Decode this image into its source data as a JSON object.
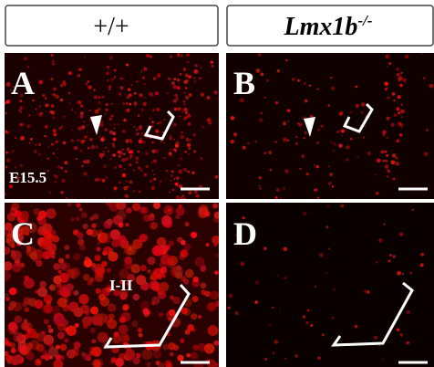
{
  "header": {
    "left": "+/+",
    "right": {
      "text": "Lmx1b",
      "superscript": "-/-"
    }
  },
  "panels": [
    {
      "label": "A",
      "annotation": "E15.5"
    },
    {
      "label": "B"
    },
    {
      "label": "C",
      "annotation": "I-II"
    },
    {
      "label": "D"
    }
  ]
}
